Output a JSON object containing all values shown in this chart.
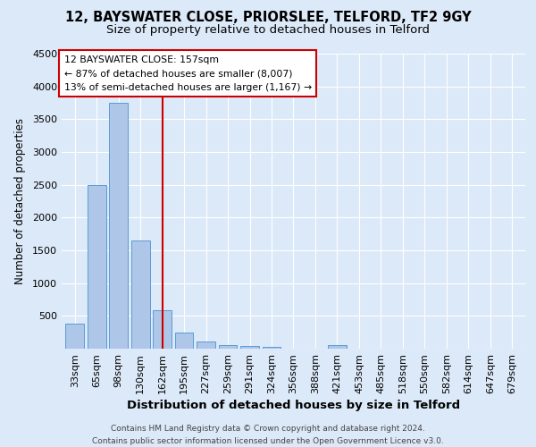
{
  "title1": "12, BAYSWATER CLOSE, PRIORSLEE, TELFORD, TF2 9GY",
  "title2": "Size of property relative to detached houses in Telford",
  "xlabel": "Distribution of detached houses by size in Telford",
  "ylabel": "Number of detached properties",
  "categories": [
    "33sqm",
    "65sqm",
    "98sqm",
    "130sqm",
    "162sqm",
    "195sqm",
    "227sqm",
    "259sqm",
    "291sqm",
    "324sqm",
    "356sqm",
    "388sqm",
    "421sqm",
    "453sqm",
    "485sqm",
    "518sqm",
    "550sqm",
    "582sqm",
    "614sqm",
    "647sqm",
    "679sqm"
  ],
  "values": [
    380,
    2500,
    3750,
    1650,
    580,
    240,
    110,
    60,
    45,
    30,
    0,
    0,
    55,
    0,
    0,
    0,
    0,
    0,
    0,
    0,
    0
  ],
  "bar_color": "#aec6e8",
  "bar_edge_color": "#5b9bd5",
  "background_color": "#dce9f8",
  "grid_color": "#ffffff",
  "vline_x": 4.0,
  "vline_color": "#cc0000",
  "annotation_text": "12 BAYSWATER CLOSE: 157sqm\n← 87% of detached houses are smaller (8,007)\n13% of semi-detached houses are larger (1,167) →",
  "annotation_box_color": "#ffffff",
  "annotation_box_edge": "#cc0000",
  "footer": "Contains HM Land Registry data © Crown copyright and database right 2024.\nContains public sector information licensed under the Open Government Licence v3.0.",
  "ylim": [
    0,
    4500
  ],
  "yticks": [
    0,
    500,
    1000,
    1500,
    2000,
    2500,
    3000,
    3500,
    4000,
    4500
  ],
  "title1_fontsize": 10.5,
  "title2_fontsize": 9.5,
  "xlabel_fontsize": 9.5,
  "ylabel_fontsize": 8.5,
  "tick_fontsize": 8,
  "annot_fontsize": 7.8,
  "footer_fontsize": 6.5
}
